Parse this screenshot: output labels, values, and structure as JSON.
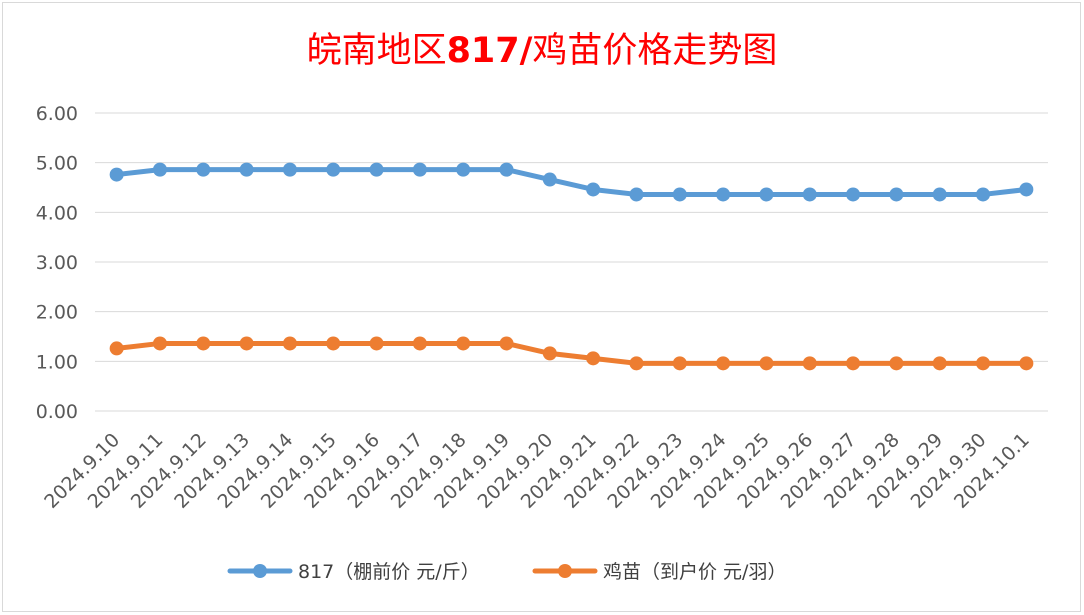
{
  "chart_data": {
    "type": "line",
    "title_plain": "皖南地区",
    "title_bold": "817/",
    "title_tail": "鸡苗价格走势图",
    "categories": [
      "2024.9.10",
      "2024.9.11",
      "2024.9.12",
      "2024.9.13",
      "2024.9.14",
      "2024.9.15",
      "2024.9.16",
      "2024.9.17",
      "2024.9.18",
      "2024.9.19",
      "2024.9.20",
      "2024.9.21",
      "2024.9.22",
      "2024.9.23",
      "2024.9.24",
      "2024.9.25",
      "2024.9.26",
      "2024.9.27",
      "2024.9.28",
      "2024.9.29",
      "2024.9.30",
      "2024.10.1"
    ],
    "series": [
      {
        "name": "817（棚前价 元/斤）",
        "color": "#5B9BD5",
        "values": [
          4.76,
          4.86,
          4.86,
          4.86,
          4.86,
          4.86,
          4.86,
          4.86,
          4.86,
          4.86,
          4.66,
          4.46,
          4.36,
          4.36,
          4.36,
          4.36,
          4.36,
          4.36,
          4.36,
          4.36,
          4.36,
          4.46
        ]
      },
      {
        "name": "鸡苗（到户价 元/羽）",
        "color": "#ED7D31",
        "values": [
          1.26,
          1.36,
          1.36,
          1.36,
          1.36,
          1.36,
          1.36,
          1.36,
          1.36,
          1.36,
          1.16,
          1.06,
          0.96,
          0.96,
          0.96,
          0.96,
          0.96,
          0.96,
          0.96,
          0.96,
          0.96,
          0.96
        ]
      }
    ],
    "yticks": [
      "0.00",
      "1.00",
      "2.00",
      "3.00",
      "4.00",
      "5.00",
      "6.00"
    ],
    "ylim": [
      0,
      6
    ],
    "grid": true,
    "legend_position": "bottom",
    "title_color": "#FF0000"
  }
}
